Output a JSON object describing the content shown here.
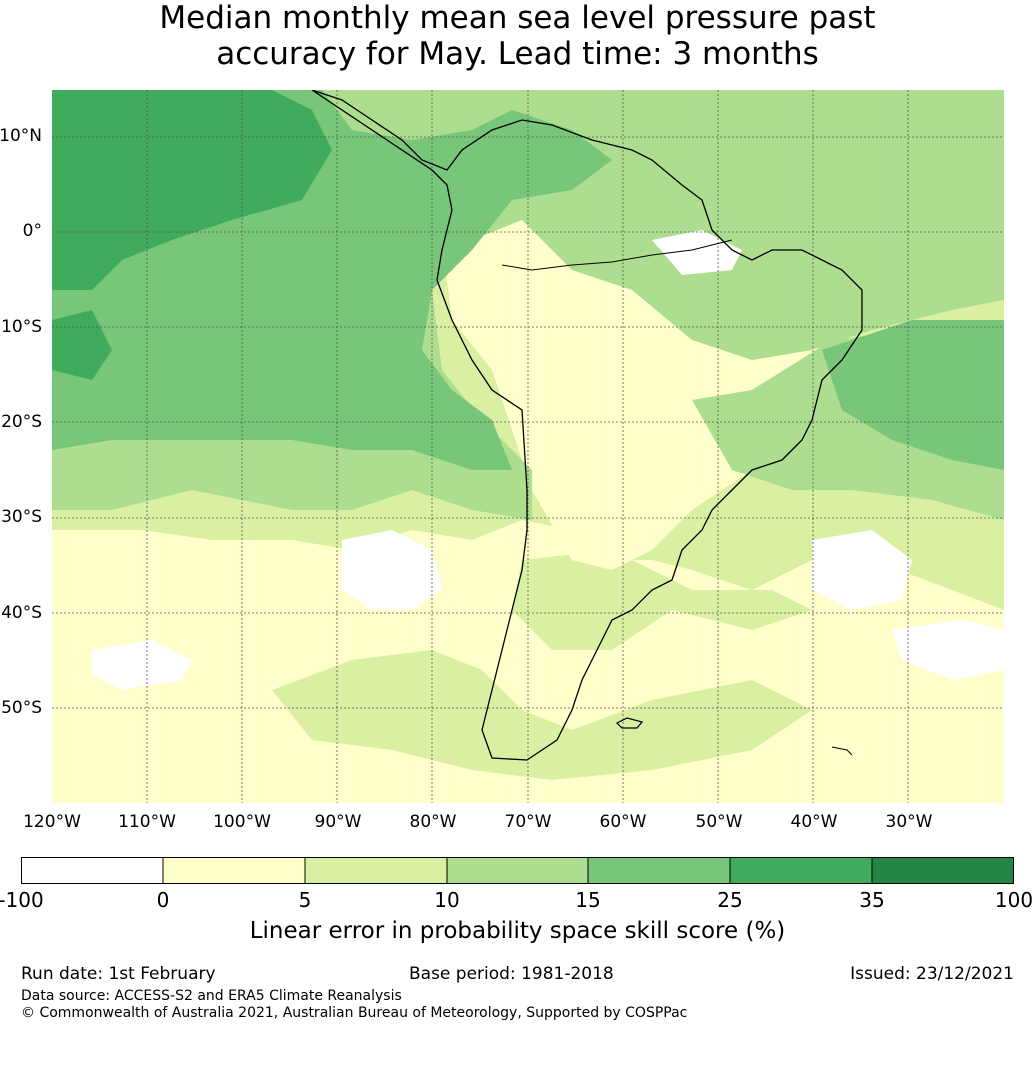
{
  "title": {
    "line1": "Median monthly mean sea level pressure past",
    "line2": "accuracy for May. Lead time: 3 months"
  },
  "map": {
    "lat_labels": [
      "10°N",
      "0°",
      "10°S",
      "20°S",
      "30°S",
      "40°S",
      "50°S"
    ],
    "lon_labels": [
      "120°W",
      "110°W",
      "100°W",
      "90°W",
      "80°W",
      "70°W",
      "60°W",
      "50°W",
      "40°W",
      "30°W"
    ],
    "extent": {
      "lon_min": -120,
      "lon_max": -20,
      "lat_min": -60,
      "lat_max": 15
    }
  },
  "colorbar": {
    "bins": [
      {
        "from": "-100",
        "to": "0",
        "color": "#ffffff"
      },
      {
        "from": "0",
        "to": "5",
        "color": "#ffffcc"
      },
      {
        "from": "5",
        "to": "10",
        "color": "#d9f0a3"
      },
      {
        "from": "10",
        "to": "15",
        "color": "#addd8e"
      },
      {
        "from": "15",
        "to": "25",
        "color": "#78c679"
      },
      {
        "from": "25",
        "to": "35",
        "color": "#41ab5d"
      },
      {
        "from": "35",
        "to": "100",
        "color": "#238443"
      }
    ],
    "ticks": [
      "-100",
      "0",
      "5",
      "10",
      "15",
      "25",
      "35",
      "100"
    ],
    "label": "Linear error in probability space skill score (%)"
  },
  "footer": {
    "run_date": "Run date: 1st February",
    "base_period": "Base period: 1981-2018",
    "issued": "Issued: 23/12/2021",
    "data_source": "Data source: ACCESS-S2 and ERA5 Climate Reanalysis",
    "copyright": "© Commonwealth of Australia 2021, Australian Bureau of Meteorology, Supported by COSPPac"
  }
}
